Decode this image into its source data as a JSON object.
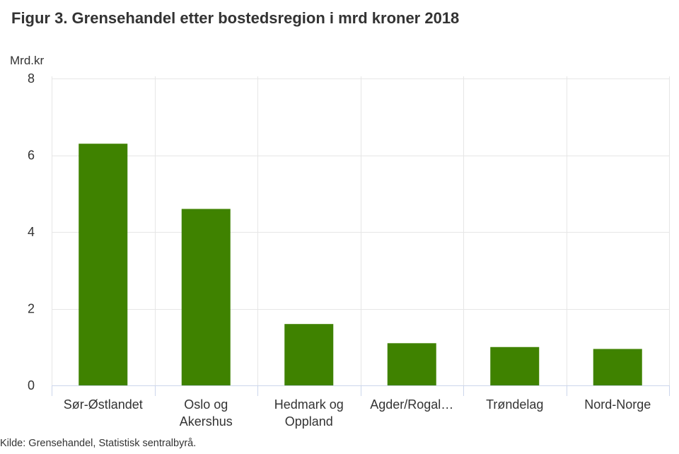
{
  "chart_data": {
    "type": "bar",
    "title": "Figur 3. Grensehandel etter bostedsregion i mrd kroner 2018",
    "xlabel": "",
    "ylabel": "Mrd.kr",
    "ylim": [
      0,
      8
    ],
    "yticks": [
      0,
      2,
      4,
      6,
      8
    ],
    "grid": true,
    "legend": "none",
    "categories": [
      "Sør-Østlandet",
      "Oslo og Akershus",
      "Hedmark og Oppland",
      "Agder/Rogal…",
      "Trøndelag",
      "Nord-Norge"
    ],
    "category_lines": [
      [
        "Sør-Østlandet"
      ],
      [
        "Oslo og",
        "Akershus"
      ],
      [
        "Hedmark og",
        "Oppland"
      ],
      [
        "Agder/Rogal…"
      ],
      [
        "Trøndelag"
      ],
      [
        "Nord-Norge"
      ]
    ],
    "series": [
      {
        "name": "Grensehandel",
        "color": "#3f8200",
        "values": [
          6.3,
          4.6,
          1.6,
          1.1,
          1.0,
          0.95
        ]
      }
    ],
    "source": "Kilde: Grensehandel, Statistisk sentralbyrå."
  }
}
